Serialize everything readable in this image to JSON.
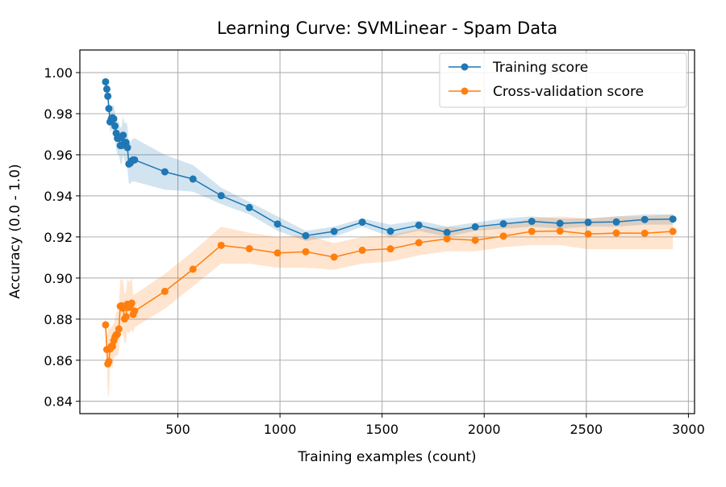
{
  "chart_data": {
    "type": "line",
    "title": "Learning Curve: SVMLinear - Spam Data",
    "xlabel": "Training examples (count)",
    "ylabel": "Accuracy (0.0 - 1.0)",
    "xlim": [
      20,
      3030
    ],
    "ylim": [
      0.834,
      1.011
    ],
    "xticks": [
      500,
      1000,
      1500,
      2000,
      2500,
      3000
    ],
    "xtick_labels": [
      "500",
      "1000",
      "1500",
      "2000",
      "2500",
      "3000"
    ],
    "yticks": [
      0.84,
      0.86,
      0.88,
      0.9,
      0.92,
      0.94,
      0.96,
      0.98,
      1.0
    ],
    "ytick_labels": [
      "0.84",
      "0.86",
      "0.88",
      "0.90",
      "0.92",
      "0.94",
      "0.96",
      "0.98",
      "1.00"
    ],
    "grid": true,
    "legend_position": "top-right",
    "series": [
      {
        "name": "Training score",
        "color": "#1f77b4",
        "marker": "circle",
        "x": [
          146,
          152,
          157,
          162,
          168,
          174,
          180,
          186,
          192,
          198,
          204,
          211,
          218,
          225,
          232,
          239,
          246,
          253,
          260,
          267,
          274,
          281,
          288,
          436,
          574,
          712,
          850,
          988,
          1126,
          1265,
          1403,
          1541,
          1680,
          1818,
          1956,
          2094,
          2233,
          2371,
          2509,
          2647,
          2786,
          2924
        ],
        "y": [
          0.9955,
          0.992,
          0.9885,
          0.9825,
          0.976,
          0.9775,
          0.978,
          0.9775,
          0.974,
          0.9705,
          0.968,
          0.968,
          0.9645,
          0.9645,
          0.9695,
          0.966,
          0.966,
          0.9635,
          0.9555,
          0.956,
          0.957,
          0.9575,
          0.9575,
          0.9517,
          0.9482,
          0.9401,
          0.9343,
          0.9263,
          0.9206,
          0.9227,
          0.9272,
          0.9228,
          0.9257,
          0.9222,
          0.9249,
          0.9264,
          0.9276,
          0.9266,
          0.9271,
          0.9273,
          0.9285,
          0.9287
        ],
        "band_lower": [
          0.993,
          0.989,
          0.985,
          0.978,
          0.971,
          0.972,
          0.972,
          0.971,
          0.967,
          0.963,
          0.96,
          0.96,
          0.956,
          0.955,
          0.96,
          0.957,
          0.956,
          0.953,
          0.946,
          0.946,
          0.947,
          0.947,
          0.947,
          0.943,
          0.942,
          0.936,
          0.931,
          0.923,
          0.918,
          0.92,
          0.925,
          0.92,
          0.923,
          0.92,
          0.923,
          0.924,
          0.925,
          0.924,
          0.925,
          0.925,
          0.926,
          0.926
        ],
        "band_upper": [
          0.998,
          0.995,
          0.992,
          0.987,
          0.981,
          0.983,
          0.984,
          0.984,
          0.981,
          0.978,
          0.976,
          0.976,
          0.973,
          0.974,
          0.979,
          0.975,
          0.976,
          0.974,
          0.965,
          0.966,
          0.967,
          0.968,
          0.968,
          0.96,
          0.955,
          0.944,
          0.937,
          0.93,
          0.923,
          0.925,
          0.929,
          0.926,
          0.928,
          0.925,
          0.927,
          0.929,
          0.93,
          0.929,
          0.929,
          0.93,
          0.931,
          0.931
        ]
      },
      {
        "name": "Cross-validation score",
        "color": "#ff7f0e",
        "marker": "circle",
        "x": [
          146,
          152,
          157,
          162,
          168,
          174,
          180,
          186,
          192,
          198,
          204,
          211,
          218,
          225,
          232,
          239,
          246,
          253,
          260,
          267,
          274,
          281,
          288,
          436,
          574,
          712,
          850,
          988,
          1126,
          1265,
          1403,
          1541,
          1680,
          1818,
          1956,
          2094,
          2233,
          2371,
          2509,
          2647,
          2786,
          2924
        ],
        "y": [
          0.8772,
          0.8652,
          0.8582,
          0.8594,
          0.8655,
          0.8668,
          0.8667,
          0.8695,
          0.8713,
          0.8724,
          0.8727,
          0.8752,
          0.8863,
          0.8865,
          0.8853,
          0.8801,
          0.8812,
          0.8873,
          0.8857,
          0.8866,
          0.8878,
          0.8823,
          0.8839,
          0.8935,
          0.9043,
          0.9159,
          0.9143,
          0.9122,
          0.9128,
          0.9102,
          0.9135,
          0.9142,
          0.9172,
          0.9191,
          0.9184,
          0.9204,
          0.9227,
          0.9229,
          0.9214,
          0.9219,
          0.9218,
          0.9227
        ],
        "band_lower": [
          0.871,
          0.859,
          0.842,
          0.843,
          0.856,
          0.858,
          0.856,
          0.861,
          0.862,
          0.862,
          0.862,
          0.864,
          0.874,
          0.874,
          0.872,
          0.868,
          0.869,
          0.874,
          0.873,
          0.874,
          0.875,
          0.873,
          0.876,
          0.885,
          0.896,
          0.907,
          0.907,
          0.905,
          0.905,
          0.904,
          0.907,
          0.908,
          0.911,
          0.913,
          0.913,
          0.915,
          0.916,
          0.916,
          0.914,
          0.914,
          0.914,
          0.914
        ],
        "band_upper": [
          0.884,
          0.872,
          0.874,
          0.876,
          0.875,
          0.876,
          0.877,
          0.878,
          0.88,
          0.883,
          0.884,
          0.887,
          0.899,
          0.899,
          0.899,
          0.892,
          0.893,
          0.9,
          0.898,
          0.899,
          0.9,
          0.892,
          0.892,
          0.902,
          0.913,
          0.925,
          0.922,
          0.92,
          0.921,
          0.917,
          0.92,
          0.921,
          0.924,
          0.925,
          0.924,
          0.926,
          0.929,
          0.93,
          0.929,
          0.93,
          0.93,
          0.931
        ]
      }
    ]
  }
}
